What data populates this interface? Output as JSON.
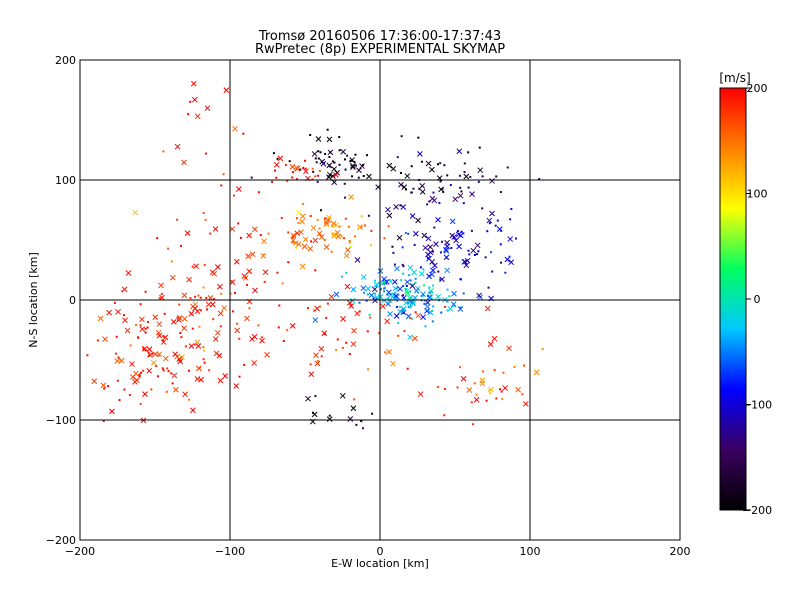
{
  "chart_data": {
    "type": "scatter",
    "title": "Tromsø 20160506 17:36:00-17:37:43",
    "subtitle": "RwPretec (8p) EXPERIMENTAL SKYMAP",
    "xlabel": "E-W location [km]",
    "ylabel": "N-S location [km]",
    "xlim": [
      -200,
      200
    ],
    "ylim": [
      -200,
      200
    ],
    "x_ticks": [
      -200,
      -100,
      0,
      100,
      200
    ],
    "y_ticks": [
      -200,
      -100,
      0,
      100,
      200
    ],
    "grid": true,
    "colorbar": {
      "label": "[m/s]",
      "range": [
        -200,
        200
      ],
      "ticks": [
        200,
        100,
        0,
        -100,
        -200
      ],
      "colors": [
        "#000000",
        "#3a0060",
        "#0000ff",
        "#00c8ff",
        "#00ff60",
        "#ffff00",
        "#ff8000",
        "#ff0000"
      ]
    },
    "markers": [
      "x",
      "dot"
    ],
    "clusters": [
      {
        "x": -150,
        "y": -40,
        "spread": [
          28,
          25
        ],
        "velocity": 190,
        "count": 140
      },
      {
        "x": -110,
        "y": 15,
        "spread": [
          25,
          25
        ],
        "velocity": 185,
        "count": 80
      },
      {
        "x": -40,
        "y": 55,
        "spread": [
          18,
          10
        ],
        "velocity": 150,
        "count": 70
      },
      {
        "x": -25,
        "y": 115,
        "spread": [
          25,
          10
        ],
        "velocity": -200,
        "count": 60
      },
      {
        "x": -55,
        "y": 108,
        "spread": [
          12,
          6
        ],
        "velocity": 190,
        "count": 25
      },
      {
        "x": 40,
        "y": 95,
        "spread": [
          28,
          15
        ],
        "velocity": -160,
        "count": 70
      },
      {
        "x": 15,
        "y": 5,
        "spread": [
          18,
          12
        ],
        "velocity": -40,
        "count": 150
      },
      {
        "x": 50,
        "y": 40,
        "spread": [
          25,
          18
        ],
        "velocity": -110,
        "count": 90
      },
      {
        "x": -20,
        "y": -30,
        "spread": [
          40,
          20
        ],
        "velocity": 180,
        "count": 60
      },
      {
        "x": 70,
        "y": -70,
        "spread": [
          20,
          15
        ],
        "velocity": 170,
        "count": 35
      },
      {
        "x": -30,
        "y": -95,
        "spread": [
          12,
          8
        ],
        "velocity": -200,
        "count": 15
      },
      {
        "x": -110,
        "y": 120,
        "spread": [
          20,
          40
        ],
        "velocity": 190,
        "count": 20
      }
    ]
  }
}
